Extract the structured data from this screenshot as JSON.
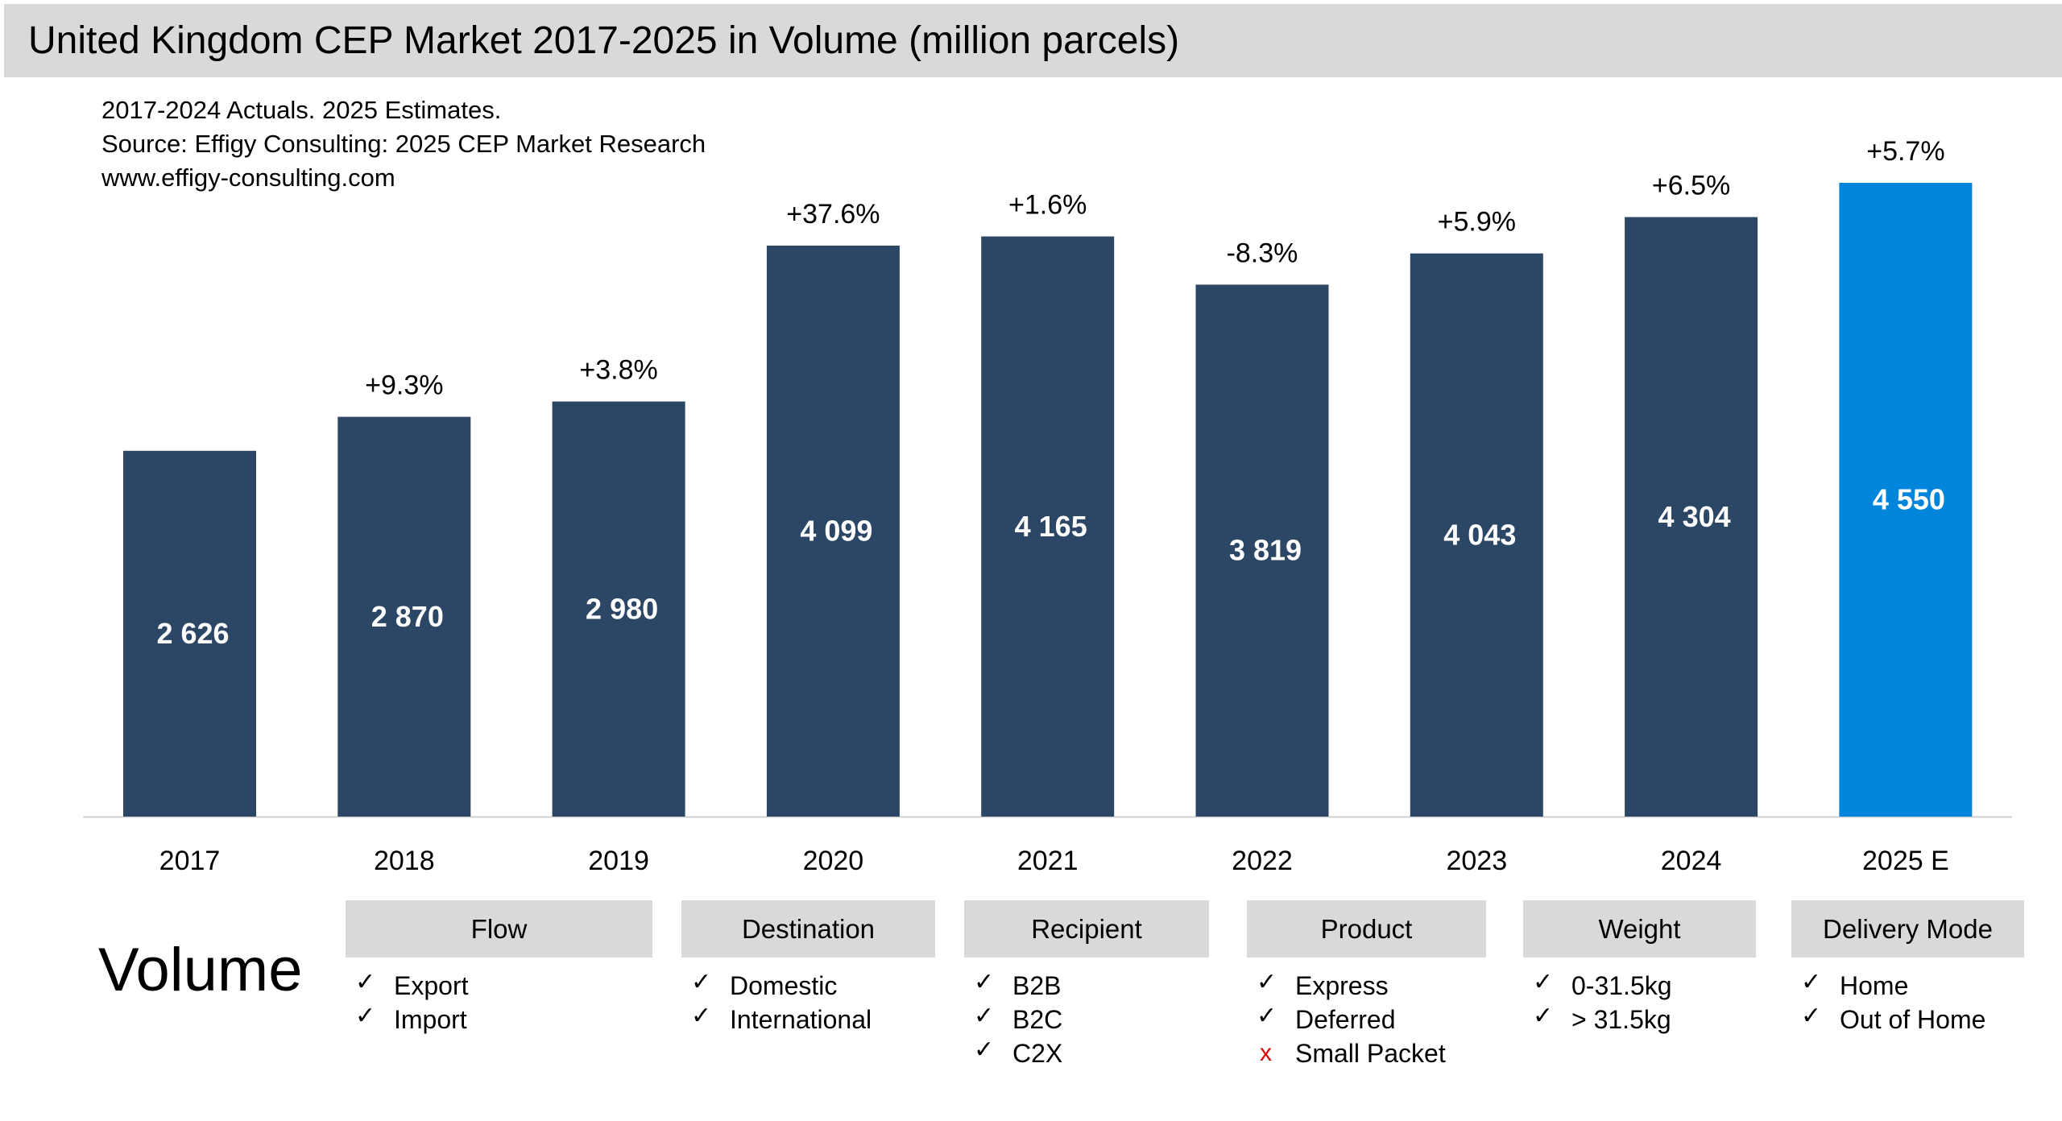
{
  "title": "United Kingdom CEP Market 2017-2025 in Volume (million parcels)",
  "notes": [
    "2017-2024 Actuals. 2025 Estimates.",
    "Source: Effigy Consulting: 2025 CEP Market Research",
    "www.effigy-consulting.com"
  ],
  "colors": {
    "actual": "#2c4665",
    "estimate": "#0085dc",
    "header_bg": "#d9d9d9",
    "excluded": "#e00000"
  },
  "chart_data": {
    "type": "bar",
    "title": "United Kingdom CEP Market 2017-2025 in Volume (million parcels)",
    "categories": [
      "2017",
      "2018",
      "2019",
      "2020",
      "2021",
      "2022",
      "2023",
      "2024",
      "2025 E"
    ],
    "values": [
      2626,
      2870,
      2980,
      4099,
      4165,
      3819,
      4043,
      4304,
      4550
    ],
    "value_labels": [
      "2 626",
      "2 870",
      "2 980",
      "4 099",
      "4 165",
      "3 819",
      "4 043",
      "4 304",
      "4 550"
    ],
    "growth_labels": [
      "",
      "+9.3%",
      "+3.8%",
      "+37.6%",
      "+1.6%",
      "-8.3%",
      "+5.9%",
      "+6.5%",
      "+5.7%"
    ],
    "estimate_flags": [
      false,
      false,
      false,
      false,
      false,
      false,
      false,
      false,
      true
    ],
    "ylim": [
      0,
      5800
    ],
    "grid": false,
    "xlabel": "",
    "ylabel": ""
  },
  "segmentation": {
    "label": "Volume",
    "categories": [
      {
        "header": "Flow",
        "items": [
          {
            "text": "Export",
            "included": true
          },
          {
            "text": "Import",
            "included": true
          }
        ]
      },
      {
        "header": "Destination",
        "items": [
          {
            "text": "Domestic",
            "included": true
          },
          {
            "text": "International",
            "included": true
          }
        ]
      },
      {
        "header": "Recipient",
        "items": [
          {
            "text": "B2B",
            "included": true
          },
          {
            "text": "B2C",
            "included": true
          },
          {
            "text": "C2X",
            "included": true
          }
        ]
      },
      {
        "header": "Product",
        "items": [
          {
            "text": "Express",
            "included": true
          },
          {
            "text": "Deferred",
            "included": true
          },
          {
            "text": "Small Packet",
            "included": false
          }
        ]
      },
      {
        "header": "Weight",
        "items": [
          {
            "text": "0-31.5kg",
            "included": true
          },
          {
            "text": "> 31.5kg",
            "included": true
          }
        ]
      },
      {
        "header": "Delivery Mode",
        "items": [
          {
            "text": "Home",
            "included": true
          },
          {
            "text": "Out of Home",
            "included": true
          }
        ]
      }
    ],
    "marks": {
      "included": "✓",
      "excluded": "x"
    }
  }
}
